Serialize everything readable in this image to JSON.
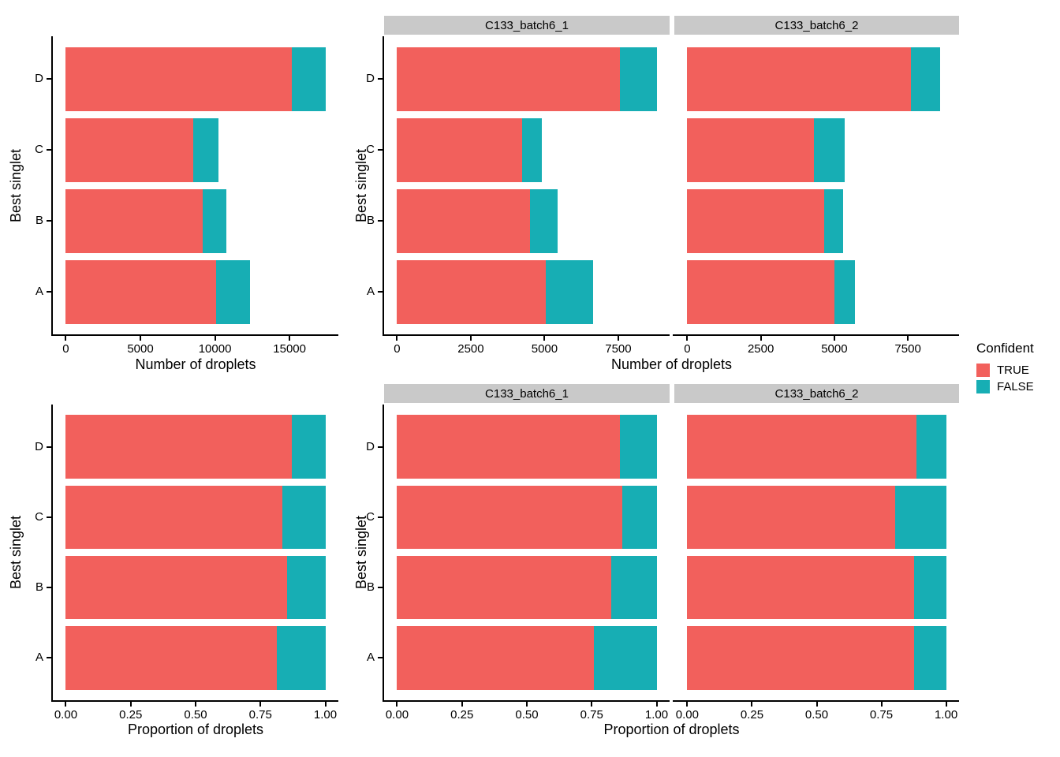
{
  "figure": {
    "background": "#FFFFFF",
    "axis_color": "#000000",
    "strip_background": "#C9C9C9"
  },
  "legend": {
    "title": "Confident",
    "entries": [
      {
        "label": "TRUE",
        "color": "#F2605C"
      },
      {
        "label": "FALSE",
        "color": "#17AEB4"
      }
    ]
  },
  "chart_data": [
    {
      "id": "counts-overall",
      "type": "bar",
      "orientation": "horizontal",
      "stacked": true,
      "xlabel": "Number of droplets",
      "ylabel": "Best singlet",
      "categories": [
        "D",
        "C",
        "B",
        "A"
      ],
      "series": [
        {
          "name": "TRUE",
          "values": [
            15150,
            8550,
            9150,
            10050
          ]
        },
        {
          "name": "FALSE",
          "values": [
            2250,
            1700,
            1600,
            2300
          ]
        }
      ],
      "xticks": [
        0,
        5000,
        10000,
        15000
      ],
      "xtick_labels": [
        "0",
        "5000",
        "10000",
        "15000"
      ],
      "xlim": [
        0,
        17400
      ],
      "grid": false
    },
    {
      "id": "counts-by-batch",
      "type": "bar",
      "orientation": "horizontal",
      "stacked": true,
      "xlabel": "Number of droplets",
      "ylabel": "Best singlet",
      "categories": [
        "D",
        "C",
        "B",
        "A"
      ],
      "facets": [
        {
          "label": "C133_batch6_1",
          "series": [
            {
              "name": "TRUE",
              "values": [
                7550,
                4250,
                4500,
                5050
              ]
            },
            {
              "name": "FALSE",
              "values": [
                1250,
                650,
                950,
                1600
              ]
            }
          ]
        },
        {
          "label": "C133_batch6_2",
          "series": [
            {
              "name": "TRUE",
              "values": [
                7600,
                4300,
                4650,
                5000
              ]
            },
            {
              "name": "FALSE",
              "values": [
                1000,
                1050,
                650,
                700
              ]
            }
          ]
        }
      ],
      "xticks": [
        0,
        2500,
        5000,
        7500
      ],
      "xtick_labels": [
        "0",
        "2500",
        "5000",
        "7500"
      ],
      "xlim": [
        0,
        8800
      ],
      "grid": false
    },
    {
      "id": "proportions-overall",
      "type": "bar",
      "orientation": "horizontal",
      "stacked": true,
      "xlabel": "Proportion of droplets",
      "ylabel": "Best singlet",
      "categories": [
        "D",
        "C",
        "B",
        "A"
      ],
      "series": [
        {
          "name": "TRUE",
          "values": [
            0.871,
            0.834,
            0.851,
            0.814
          ]
        },
        {
          "name": "FALSE",
          "values": [
            0.129,
            0.166,
            0.149,
            0.186
          ]
        }
      ],
      "xticks": [
        0,
        0.25,
        0.5,
        0.75,
        1
      ],
      "xtick_labels": [
        "0.00",
        "0.25",
        "0.50",
        "0.75",
        "1.00"
      ],
      "xlim": [
        0,
        1
      ],
      "grid": false
    },
    {
      "id": "proportions-by-batch",
      "type": "bar",
      "orientation": "horizontal",
      "stacked": true,
      "xlabel": "Proportion of droplets",
      "ylabel": "Best singlet",
      "categories": [
        "D",
        "C",
        "B",
        "A"
      ],
      "facets": [
        {
          "label": "C133_batch6_1",
          "series": [
            {
              "name": "TRUE",
              "values": [
                0.858,
                0.867,
                0.826,
                0.759
              ]
            },
            {
              "name": "FALSE",
              "values": [
                0.142,
                0.133,
                0.174,
                0.241
              ]
            }
          ]
        },
        {
          "label": "C133_batch6_2",
          "series": [
            {
              "name": "TRUE",
              "values": [
                0.884,
                0.804,
                0.877,
                0.877
              ]
            },
            {
              "name": "FALSE",
              "values": [
                0.116,
                0.196,
                0.123,
                0.123
              ]
            }
          ]
        }
      ],
      "xticks": [
        0,
        0.25,
        0.5,
        0.75,
        1
      ],
      "xtick_labels": [
        "0.00",
        "0.25",
        "0.50",
        "0.75",
        "1.00"
      ],
      "xlim": [
        0,
        1
      ],
      "grid": false
    }
  ]
}
